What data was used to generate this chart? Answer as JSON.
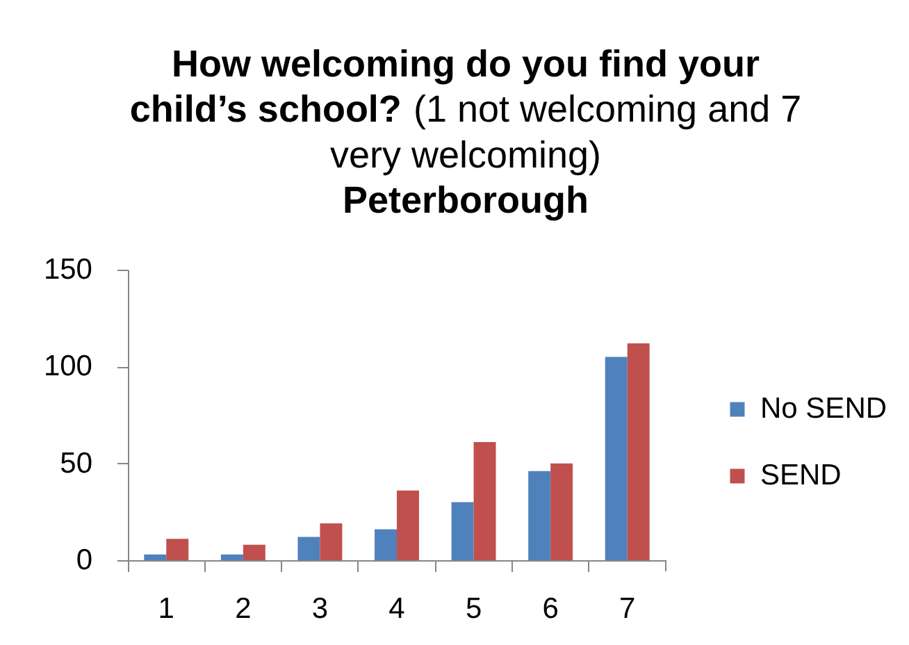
{
  "chart_data": {
    "type": "bar",
    "title": "How welcoming do you find your child’s school? (1 not welcoming and 7 very welcoming)",
    "subtitle": "Peterborough",
    "categories": [
      "1",
      "2",
      "3",
      "4",
      "5",
      "6",
      "7"
    ],
    "series": [
      {
        "name": "No SEND",
        "color": "#4f81bd",
        "values": [
          3,
          3,
          12,
          16,
          30,
          46,
          105
        ]
      },
      {
        "name": "SEND",
        "color": "#c0504d",
        "values": [
          11,
          8,
          19,
          36,
          61,
          50,
          112
        ]
      }
    ],
    "ylim": [
      0,
      150
    ],
    "yticks": [
      0,
      50,
      100,
      150
    ],
    "grid": false,
    "legend": "right"
  }
}
